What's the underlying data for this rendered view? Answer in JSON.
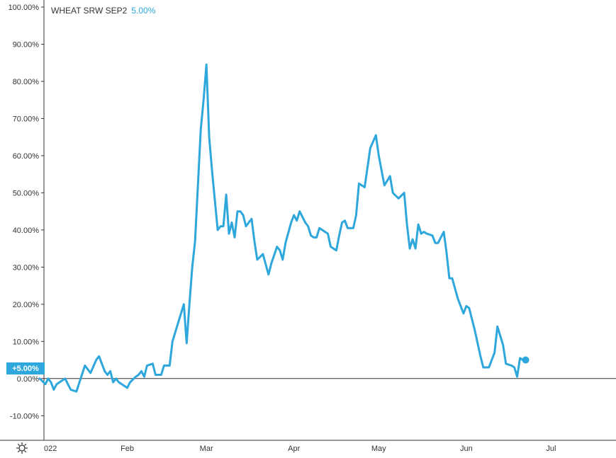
{
  "legend": {
    "symbol": "WHEAT SRW SEP2",
    "value": "5.00%"
  },
  "last_badge": "+5.00%",
  "icons": {
    "settings": "gear-icon"
  },
  "colors": {
    "line": "#2ea7dc",
    "axis": "#333333"
  },
  "chart_data": {
    "type": "line",
    "title": "",
    "xlabel": "",
    "ylabel": "",
    "ylim": [
      -13,
      100
    ],
    "y_ticks": [
      "-10.00%",
      "0.00%",
      "10.00%",
      "20.00%",
      "30.00%",
      "40.00%",
      "50.00%",
      "60.00%",
      "70.00%",
      "80.00%",
      "90.00%",
      "100.00%"
    ],
    "x_range": [
      "2021-12-31",
      "2022-07-31"
    ],
    "x_ticks": [
      {
        "date": "2022-01-01",
        "label": "022"
      },
      {
        "date": "2022-02-01",
        "label": "Feb"
      },
      {
        "date": "2022-03-01",
        "label": "Mar"
      },
      {
        "date": "2022-04-01",
        "label": "Apr"
      },
      {
        "date": "2022-05-01",
        "label": "May"
      },
      {
        "date": "2022-06-01",
        "label": "Jun"
      },
      {
        "date": "2022-07-01",
        "label": "Jul"
      }
    ],
    "series": [
      {
        "points": [
          [
            "2022-01-01",
            0
          ],
          [
            "2022-01-03",
            -1.5
          ],
          [
            "2022-01-04",
            0
          ],
          [
            "2022-01-05",
            -1
          ],
          [
            "2022-01-06",
            -3
          ],
          [
            "2022-01-07",
            -1.5
          ],
          [
            "2022-01-09",
            -0.5
          ],
          [
            "2022-01-10",
            0
          ],
          [
            "2022-01-11",
            -1.5
          ],
          [
            "2022-01-12",
            -3
          ],
          [
            "2022-01-14",
            -3.5
          ],
          [
            "2022-01-17",
            3.5
          ],
          [
            "2022-01-19",
            1.5
          ],
          [
            "2022-01-21",
            5
          ],
          [
            "2022-01-22",
            6
          ],
          [
            "2022-01-24",
            2
          ],
          [
            "2022-01-25",
            1
          ],
          [
            "2022-01-26",
            2
          ],
          [
            "2022-01-27",
            -1
          ],
          [
            "2022-01-28",
            0
          ],
          [
            "2022-01-29",
            -1
          ],
          [
            "2022-01-31",
            -2
          ],
          [
            "2022-02-01",
            -2.5
          ],
          [
            "2022-02-02",
            -1
          ],
          [
            "2022-02-04",
            0.5
          ],
          [
            "2022-02-05",
            1
          ],
          [
            "2022-02-06",
            2
          ],
          [
            "2022-02-07",
            0.5
          ],
          [
            "2022-02-08",
            3.5
          ],
          [
            "2022-02-10",
            4
          ],
          [
            "2022-02-11",
            1
          ],
          [
            "2022-02-13",
            1
          ],
          [
            "2022-02-14",
            3.5
          ],
          [
            "2022-02-16",
            3.5
          ],
          [
            "2022-02-17",
            10
          ],
          [
            "2022-02-19",
            15
          ],
          [
            "2022-02-21",
            20
          ],
          [
            "2022-02-22",
            9.5
          ],
          [
            "2022-02-23",
            20
          ],
          [
            "2022-02-24",
            30
          ],
          [
            "2022-02-25",
            37
          ],
          [
            "2022-02-27",
            67
          ],
          [
            "2022-02-28",
            75
          ],
          [
            "2022-03-01",
            84.5
          ],
          [
            "2022-03-02",
            65
          ],
          [
            "2022-03-03",
            56
          ],
          [
            "2022-03-05",
            40
          ],
          [
            "2022-03-06",
            41
          ],
          [
            "2022-03-07",
            41
          ],
          [
            "2022-03-08",
            49.5
          ],
          [
            "2022-03-09",
            39
          ],
          [
            "2022-03-10",
            42
          ],
          [
            "2022-03-11",
            38
          ],
          [
            "2022-03-12",
            45
          ],
          [
            "2022-03-13",
            45
          ],
          [
            "2022-03-14",
            44
          ],
          [
            "2022-03-15",
            41
          ],
          [
            "2022-03-17",
            43
          ],
          [
            "2022-03-18",
            37
          ],
          [
            "2022-03-19",
            32
          ],
          [
            "2022-03-21",
            33.5
          ],
          [
            "2022-03-23",
            28
          ],
          [
            "2022-03-24",
            31
          ],
          [
            "2022-03-26",
            35.5
          ],
          [
            "2022-03-27",
            34.5
          ],
          [
            "2022-03-28",
            32
          ],
          [
            "2022-03-29",
            36.5
          ],
          [
            "2022-03-31",
            42
          ],
          [
            "2022-04-01",
            44
          ],
          [
            "2022-04-02",
            42.5
          ],
          [
            "2022-04-03",
            45
          ],
          [
            "2022-04-05",
            42
          ],
          [
            "2022-04-06",
            41
          ],
          [
            "2022-04-07",
            38.5
          ],
          [
            "2022-04-08",
            38
          ],
          [
            "2022-04-09",
            38
          ],
          [
            "2022-04-10",
            40.5
          ],
          [
            "2022-04-11",
            40
          ],
          [
            "2022-04-13",
            39
          ],
          [
            "2022-04-14",
            35.5
          ],
          [
            "2022-04-15",
            35
          ],
          [
            "2022-04-16",
            34.5
          ],
          [
            "2022-04-17",
            38.5
          ],
          [
            "2022-04-18",
            42
          ],
          [
            "2022-04-19",
            42.5
          ],
          [
            "2022-04-20",
            40.5
          ],
          [
            "2022-04-22",
            40.5
          ],
          [
            "2022-04-23",
            44
          ],
          [
            "2022-04-24",
            52.5
          ],
          [
            "2022-04-26",
            51.5
          ],
          [
            "2022-04-28",
            62
          ],
          [
            "2022-04-30",
            65.5
          ],
          [
            "2022-05-01",
            60
          ],
          [
            "2022-05-03",
            52
          ],
          [
            "2022-05-05",
            54.5
          ],
          [
            "2022-05-06",
            50
          ],
          [
            "2022-05-08",
            48.5
          ],
          [
            "2022-05-10",
            50
          ],
          [
            "2022-05-11",
            41.5
          ],
          [
            "2022-05-12",
            35
          ],
          [
            "2022-05-13",
            37.5
          ],
          [
            "2022-05-14",
            35
          ],
          [
            "2022-05-15",
            41.5
          ],
          [
            "2022-05-16",
            39
          ],
          [
            "2022-05-17",
            39.5
          ],
          [
            "2022-05-18",
            39
          ],
          [
            "2022-05-20",
            38.5
          ],
          [
            "2022-05-21",
            36.5
          ],
          [
            "2022-05-22",
            36.5
          ],
          [
            "2022-05-24",
            39.5
          ],
          [
            "2022-05-25",
            34
          ],
          [
            "2022-05-26",
            27
          ],
          [
            "2022-05-27",
            27
          ],
          [
            "2022-05-29",
            21.5
          ],
          [
            "2022-05-31",
            17.5
          ],
          [
            "2022-06-01",
            19.5
          ],
          [
            "2022-06-02",
            19
          ],
          [
            "2022-06-04",
            13
          ],
          [
            "2022-06-06",
            6
          ],
          [
            "2022-06-07",
            3
          ],
          [
            "2022-06-09",
            3
          ],
          [
            "2022-06-11",
            7
          ],
          [
            "2022-06-12",
            14
          ],
          [
            "2022-06-14",
            9
          ],
          [
            "2022-06-15",
            4
          ],
          [
            "2022-06-17",
            3.5
          ],
          [
            "2022-06-18",
            3
          ],
          [
            "2022-06-19",
            0.5
          ],
          [
            "2022-06-20",
            5.5
          ],
          [
            "2022-06-21",
            5
          ],
          [
            "2022-06-22",
            5
          ]
        ]
      }
    ]
  }
}
